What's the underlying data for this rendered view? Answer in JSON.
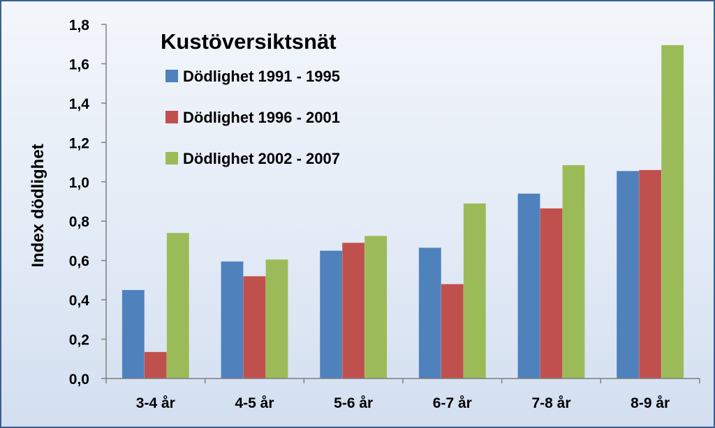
{
  "chart_data": {
    "type": "bar",
    "title": "Kustöversiktsnät",
    "xlabel": "",
    "ylabel": "Index dödlighet",
    "ylim": [
      0,
      1.8
    ],
    "yticks": [
      "0,0",
      "0,2",
      "0,4",
      "0,6",
      "0,8",
      "1,0",
      "1,2",
      "1,4",
      "1,6",
      "1,8"
    ],
    "grid": false,
    "legend_position": "top-left",
    "categories": [
      "3-4 år",
      "4-5 år",
      "5-6 år",
      "6-7 år",
      "7-8 år",
      "8-9 år"
    ],
    "series": [
      {
        "name": "Dödlighet 1991 - 1995",
        "color": "#4f81bd",
        "values": [
          0.45,
          0.595,
          0.65,
          0.665,
          0.94,
          1.055
        ]
      },
      {
        "name": "Dödlighet 1996 - 2001",
        "color": "#c0504d",
        "values": [
          0.135,
          0.52,
          0.69,
          0.48,
          0.865,
          1.06
        ]
      },
      {
        "name": "Dödlighet 2002 - 2007",
        "color": "#9bbb59",
        "values": [
          0.74,
          0.605,
          0.725,
          0.89,
          1.085,
          1.695
        ]
      }
    ]
  }
}
